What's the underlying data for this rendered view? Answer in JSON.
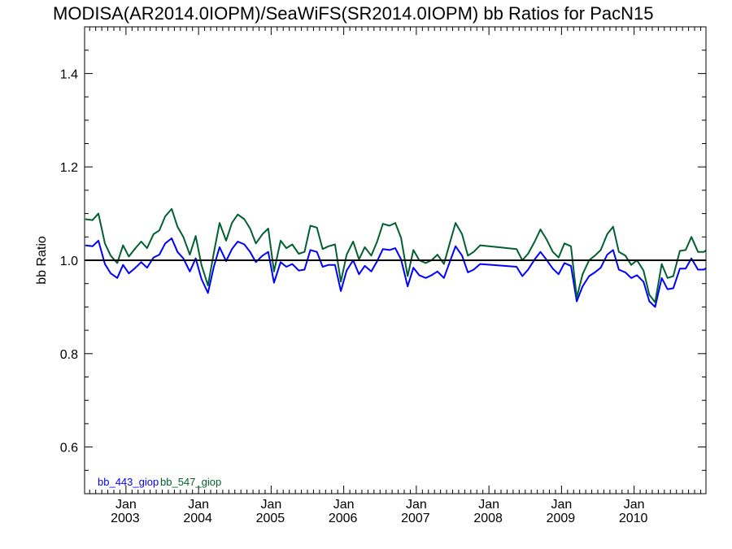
{
  "chart_data": {
    "type": "line",
    "title": "MODISA(AR2014.0IOPM)/SeaWiFS(SR2014.0IOPM)  bb Ratios for PacN15",
    "ylabel": "bb Ratio",
    "xlabel": "",
    "xlim": [
      2002.43,
      2010.99
    ],
    "ylim": [
      0.5,
      1.5
    ],
    "yticks": [
      {
        "value": 0.6,
        "label": "0.6"
      },
      {
        "value": 0.8,
        "label": "0.8"
      },
      {
        "value": 1.0,
        "label": "1.0"
      },
      {
        "value": 1.2,
        "label": "1.2"
      },
      {
        "value": 1.4,
        "label": "1.4"
      }
    ],
    "xticks": [
      {
        "value": 2003.0,
        "label_month": "Jan",
        "label_year": "2003"
      },
      {
        "value": 2004.0,
        "label_month": "Jan",
        "label_year": "2004"
      },
      {
        "value": 2005.0,
        "label_month": "Jan",
        "label_year": "2005"
      },
      {
        "value": 2006.0,
        "label_month": "Jan",
        "label_year": "2006"
      },
      {
        "value": 2007.0,
        "label_month": "Jan",
        "label_year": "2007"
      },
      {
        "value": 2008.0,
        "label_month": "Jan",
        "label_year": "2008"
      },
      {
        "value": 2009.0,
        "label_month": "Jan",
        "label_year": "2009"
      },
      {
        "value": 2010.0,
        "label_month": "Jan",
        "label_year": "2010"
      }
    ],
    "reference_line": {
      "value": 1.0,
      "color": "#000000"
    },
    "series": [
      {
        "name": "bb_443_giop",
        "color": "#0000ff",
        "points": [
          [
            2002.44,
            1.032
          ],
          [
            2002.54,
            1.03
          ],
          [
            2002.62,
            1.042
          ],
          [
            2002.71,
            0.992
          ],
          [
            2002.79,
            0.972
          ],
          [
            2002.88,
            0.962
          ],
          [
            2002.96,
            0.99
          ],
          [
            2003.04,
            0.972
          ],
          [
            2003.13,
            0.984
          ],
          [
            2003.21,
            0.996
          ],
          [
            2003.29,
            0.984
          ],
          [
            2003.38,
            1.006
          ],
          [
            2003.46,
            1.012
          ],
          [
            2003.54,
            1.036
          ],
          [
            2003.63,
            1.047
          ],
          [
            2003.71,
            1.018
          ],
          [
            2003.79,
            1.004
          ],
          [
            2003.88,
            0.976
          ],
          [
            2003.96,
            1.004
          ],
          [
            2004.04,
            0.96
          ],
          [
            2004.13,
            0.93
          ],
          [
            2004.21,
            0.986
          ],
          [
            2004.29,
            1.028
          ],
          [
            2004.38,
            0.998
          ],
          [
            2004.46,
            1.024
          ],
          [
            2004.54,
            1.04
          ],
          [
            2004.63,
            1.034
          ],
          [
            2004.71,
            1.018
          ],
          [
            2004.79,
            0.996
          ],
          [
            2004.88,
            1.01
          ],
          [
            2004.96,
            1.018
          ],
          [
            2005.04,
            0.952
          ],
          [
            2005.13,
            0.996
          ],
          [
            2005.21,
            0.986
          ],
          [
            2005.29,
            0.992
          ],
          [
            2005.38,
            0.978
          ],
          [
            2005.46,
            0.98
          ],
          [
            2005.54,
            1.022
          ],
          [
            2005.63,
            1.018
          ],
          [
            2005.71,
            0.986
          ],
          [
            2005.79,
            0.99
          ],
          [
            2005.88,
            0.99
          ],
          [
            2005.96,
            0.934
          ],
          [
            2006.04,
            0.978
          ],
          [
            2006.13,
            1.0
          ],
          [
            2006.21,
            0.97
          ],
          [
            2006.29,
            0.988
          ],
          [
            2006.38,
            0.976
          ],
          [
            2006.46,
            0.998
          ],
          [
            2006.54,
            1.024
          ],
          [
            2006.63,
            1.022
          ],
          [
            2006.71,
            1.026
          ],
          [
            2006.79,
            1.002
          ],
          [
            2006.88,
            0.944
          ],
          [
            2006.96,
            0.984
          ],
          [
            2007.04,
            0.968
          ],
          [
            2007.13,
            0.962
          ],
          [
            2007.21,
            0.968
          ],
          [
            2007.29,
            0.976
          ],
          [
            2007.38,
            0.962
          ],
          [
            2007.46,
            0.996
          ],
          [
            2007.54,
            1.03
          ],
          [
            2007.63,
            1.01
          ],
          [
            2007.71,
            0.974
          ],
          [
            2007.79,
            0.98
          ],
          [
            2007.88,
            0.992
          ],
          [
            2008.38,
            0.986
          ],
          [
            2008.46,
            0.966
          ],
          [
            2008.54,
            0.98
          ],
          [
            2008.63,
            1.002
          ],
          [
            2008.71,
            1.018
          ],
          [
            2008.79,
            1.002
          ],
          [
            2008.88,
            0.982
          ],
          [
            2008.96,
            0.97
          ],
          [
            2009.04,
            0.994
          ],
          [
            2009.13,
            0.988
          ],
          [
            2009.21,
            0.912
          ],
          [
            2009.29,
            0.944
          ],
          [
            2009.38,
            0.966
          ],
          [
            2009.46,
            0.974
          ],
          [
            2009.54,
            0.984
          ],
          [
            2009.63,
            1.012
          ],
          [
            2009.71,
            1.022
          ],
          [
            2009.79,
            0.98
          ],
          [
            2009.88,
            0.974
          ],
          [
            2009.96,
            0.962
          ],
          [
            2010.04,
            0.968
          ],
          [
            2010.13,
            0.954
          ],
          [
            2010.21,
            0.912
          ],
          [
            2010.29,
            0.9
          ],
          [
            2010.38,
            0.962
          ],
          [
            2010.46,
            0.938
          ],
          [
            2010.54,
            0.94
          ],
          [
            2010.63,
            0.982
          ],
          [
            2010.71,
            0.982
          ],
          [
            2010.79,
            1.004
          ],
          [
            2010.88,
            0.98
          ],
          [
            2010.96,
            0.98
          ],
          [
            2011.0,
            0.984
          ]
        ]
      },
      {
        "name": "bb_547_giop",
        "color": "#006030",
        "points": [
          [
            2002.44,
            1.088
          ],
          [
            2002.54,
            1.086
          ],
          [
            2002.62,
            1.1
          ],
          [
            2002.71,
            1.036
          ],
          [
            2002.79,
            1.01
          ],
          [
            2002.88,
            0.994
          ],
          [
            2002.96,
            1.032
          ],
          [
            2003.04,
            1.008
          ],
          [
            2003.13,
            1.026
          ],
          [
            2003.21,
            1.04
          ],
          [
            2003.29,
            1.026
          ],
          [
            2003.38,
            1.056
          ],
          [
            2003.46,
            1.064
          ],
          [
            2003.54,
            1.094
          ],
          [
            2003.63,
            1.11
          ],
          [
            2003.71,
            1.072
          ],
          [
            2003.79,
            1.05
          ],
          [
            2003.88,
            1.012
          ],
          [
            2003.96,
            1.052
          ],
          [
            2004.04,
            0.99
          ],
          [
            2004.13,
            0.946
          ],
          [
            2004.21,
            1.016
          ],
          [
            2004.29,
            1.08
          ],
          [
            2004.38,
            1.042
          ],
          [
            2004.46,
            1.08
          ],
          [
            2004.54,
            1.098
          ],
          [
            2004.63,
            1.088
          ],
          [
            2004.71,
            1.068
          ],
          [
            2004.79,
            1.036
          ],
          [
            2004.88,
            1.056
          ],
          [
            2004.96,
            1.068
          ],
          [
            2005.04,
            0.976
          ],
          [
            2005.13,
            1.042
          ],
          [
            2005.21,
            1.026
          ],
          [
            2005.29,
            1.034
          ],
          [
            2005.38,
            1.014
          ],
          [
            2005.46,
            1.018
          ],
          [
            2005.54,
            1.074
          ],
          [
            2005.63,
            1.07
          ],
          [
            2005.71,
            1.024
          ],
          [
            2005.79,
            1.03
          ],
          [
            2005.88,
            1.034
          ],
          [
            2005.96,
            0.954
          ],
          [
            2006.04,
            1.012
          ],
          [
            2006.13,
            1.04
          ],
          [
            2006.21,
            1.002
          ],
          [
            2006.29,
            1.028
          ],
          [
            2006.38,
            1.01
          ],
          [
            2006.46,
            1.04
          ],
          [
            2006.54,
            1.078
          ],
          [
            2006.63,
            1.074
          ],
          [
            2006.71,
            1.08
          ],
          [
            2006.79,
            1.048
          ],
          [
            2006.88,
            0.966
          ],
          [
            2006.96,
            1.022
          ],
          [
            2007.04,
            1.0
          ],
          [
            2007.13,
            0.994
          ],
          [
            2007.21,
            1.0
          ],
          [
            2007.29,
            1.012
          ],
          [
            2007.38,
            0.992
          ],
          [
            2007.46,
            1.036
          ],
          [
            2007.54,
            1.08
          ],
          [
            2007.63,
            1.056
          ],
          [
            2007.71,
            1.01
          ],
          [
            2007.79,
            1.018
          ],
          [
            2007.88,
            1.032
          ],
          [
            2008.38,
            1.024
          ],
          [
            2008.46,
            1.0
          ],
          [
            2008.54,
            1.014
          ],
          [
            2008.63,
            1.04
          ],
          [
            2008.71,
            1.066
          ],
          [
            2008.79,
            1.046
          ],
          [
            2008.88,
            1.018
          ],
          [
            2008.96,
            1.006
          ],
          [
            2009.04,
            1.036
          ],
          [
            2009.13,
            1.03
          ],
          [
            2009.21,
            0.92
          ],
          [
            2009.29,
            0.97
          ],
          [
            2009.38,
            1.0
          ],
          [
            2009.46,
            1.01
          ],
          [
            2009.54,
            1.022
          ],
          [
            2009.63,
            1.056
          ],
          [
            2009.71,
            1.072
          ],
          [
            2009.79,
            1.018
          ],
          [
            2009.88,
            1.01
          ],
          [
            2009.96,
            0.99
          ],
          [
            2010.04,
            1.0
          ],
          [
            2010.13,
            0.978
          ],
          [
            2010.21,
            0.926
          ],
          [
            2010.29,
            0.91
          ],
          [
            2010.38,
            0.992
          ],
          [
            2010.46,
            0.962
          ],
          [
            2010.54,
            0.966
          ],
          [
            2010.63,
            1.02
          ],
          [
            2010.71,
            1.022
          ],
          [
            2010.79,
            1.05
          ],
          [
            2010.88,
            1.018
          ],
          [
            2010.96,
            1.018
          ],
          [
            2011.0,
            1.022
          ]
        ]
      }
    ],
    "grid": false,
    "legend_position": "bottom-left"
  }
}
